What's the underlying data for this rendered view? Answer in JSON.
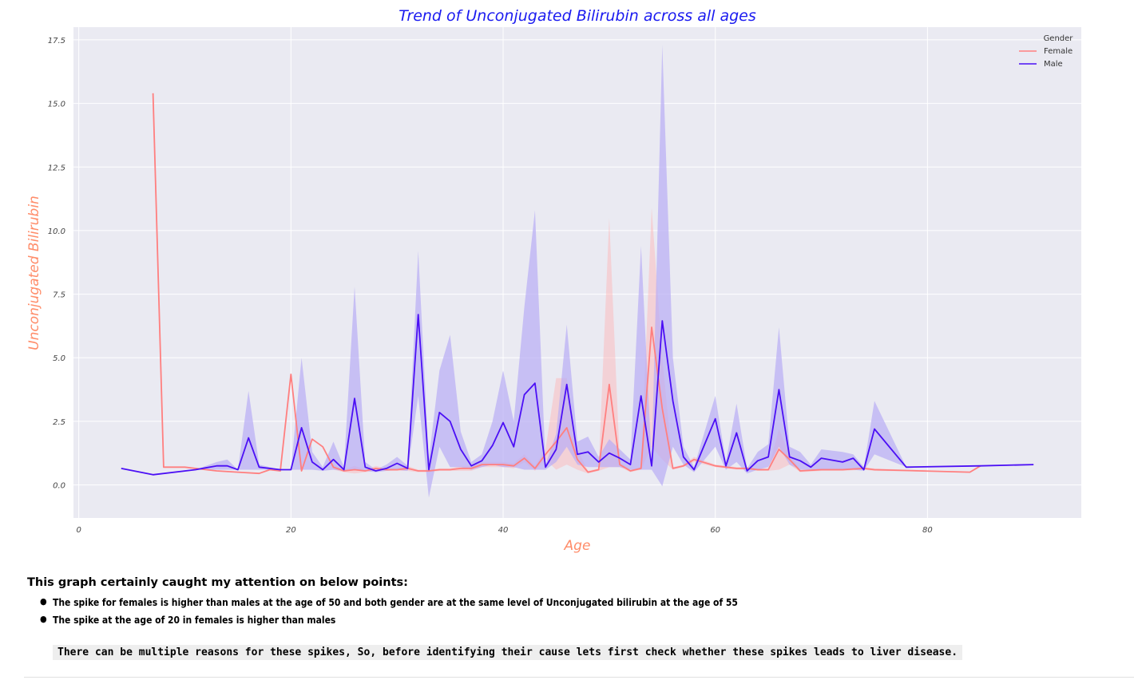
{
  "chart_data": {
    "type": "line",
    "title": "Trend of Unconjugated Bilirubin across all ages",
    "xlabel": "Age",
    "ylabel": "Unconjugated Bilirubin",
    "xlim": [
      -0.5,
      94.5
    ],
    "ylim": [
      -1.3,
      18.0
    ],
    "xticks": [
      0,
      20,
      40,
      60,
      80
    ],
    "yticks": [
      0.0,
      2.5,
      5.0,
      7.5,
      10.0,
      12.5,
      15.0,
      17.5
    ],
    "xtick_labels": [
      "0",
      "20",
      "40",
      "60",
      "80"
    ],
    "ytick_labels": [
      "0.0",
      "2.5",
      "5.0",
      "7.5",
      "10.0",
      "12.5",
      "15.0",
      "17.5"
    ],
    "grid": true,
    "legend": {
      "title": "Gender",
      "placement": "top-right"
    },
    "series": [
      {
        "name": "Female",
        "color": "#ff7f7f",
        "band_color": "#ffb3b3",
        "x": [
          7,
          8,
          10,
          11,
          13,
          15,
          17,
          18,
          19,
          20,
          21,
          22,
          23,
          24,
          25,
          26,
          27,
          28,
          29,
          30,
          31,
          32,
          33,
          34,
          35,
          36,
          37,
          38,
          39,
          40,
          41,
          42,
          43,
          44,
          45,
          46,
          47,
          48,
          49,
          50,
          51,
          52,
          53,
          54,
          55,
          56,
          57,
          58,
          60,
          62,
          63,
          64,
          65,
          66,
          67,
          68,
          70,
          72,
          74,
          75,
          84,
          85
        ],
        "y": [
          15.4,
          0.7,
          0.7,
          0.65,
          0.55,
          0.5,
          0.45,
          0.6,
          0.55,
          4.35,
          0.55,
          1.8,
          1.5,
          0.7,
          0.55,
          0.6,
          0.55,
          0.65,
          0.6,
          0.6,
          0.65,
          0.55,
          0.55,
          0.6,
          0.6,
          0.65,
          0.65,
          0.8,
          0.8,
          0.8,
          0.75,
          1.05,
          0.65,
          1.2,
          1.7,
          2.25,
          1.0,
          0.5,
          0.6,
          3.95,
          0.8,
          0.55,
          0.65,
          6.2,
          3.0,
          0.65,
          0.75,
          1.0,
          0.75,
          0.65,
          0.65,
          0.6,
          0.6,
          1.4,
          1.0,
          0.55,
          0.6,
          0.6,
          0.65,
          0.6,
          0.5,
          0.75
        ],
        "ci_low": [
          15.4,
          0.7,
          0.7,
          0.65,
          0.55,
          0.5,
          0.45,
          0.6,
          0.55,
          4.35,
          0.5,
          1.8,
          1.5,
          0.6,
          0.5,
          0.45,
          0.5,
          0.55,
          0.55,
          0.55,
          0.55,
          0.5,
          0.5,
          0.55,
          0.55,
          0.55,
          0.55,
          0.7,
          0.7,
          0.7,
          0.65,
          0.9,
          0.55,
          1.0,
          0.6,
          0.8,
          0.6,
          0.45,
          0.55,
          0.7,
          0.7,
          0.5,
          0.6,
          1.5,
          1.0,
          0.6,
          0.7,
          0.9,
          0.7,
          0.6,
          0.6,
          0.55,
          0.55,
          0.6,
          0.8,
          0.5,
          0.55,
          0.55,
          0.6,
          0.55,
          0.5,
          0.75
        ],
        "ci_high": [
          15.4,
          0.7,
          0.7,
          0.65,
          0.55,
          0.5,
          0.45,
          0.6,
          0.55,
          4.35,
          0.6,
          1.8,
          1.5,
          0.8,
          0.6,
          0.75,
          0.6,
          0.75,
          0.65,
          0.65,
          0.75,
          0.6,
          0.6,
          0.65,
          0.65,
          0.75,
          0.75,
          0.9,
          0.9,
          0.9,
          0.85,
          1.2,
          0.75,
          1.4,
          4.2,
          4.2,
          1.4,
          0.55,
          0.65,
          10.5,
          0.9,
          0.6,
          0.7,
          10.9,
          5.0,
          0.7,
          0.8,
          1.1,
          0.8,
          0.7,
          0.7,
          0.65,
          0.65,
          2.2,
          1.2,
          0.6,
          0.65,
          0.65,
          0.7,
          0.65,
          0.5,
          0.75
        ]
      },
      {
        "name": "Male",
        "color": "#4b0ff5",
        "band_color": "#b8adf5",
        "x": [
          4,
          7,
          11,
          13,
          14,
          15,
          16,
          17,
          19,
          20,
          21,
          22,
          23,
          24,
          25,
          26,
          27,
          28,
          29,
          30,
          31,
          32,
          33,
          34,
          35,
          36,
          37,
          38,
          39,
          40,
          41,
          42,
          43,
          44,
          45,
          46,
          47,
          48,
          49,
          50,
          51,
          52,
          53,
          54,
          55,
          56,
          57,
          58,
          60,
          61,
          62,
          63,
          64,
          65,
          66,
          67,
          68,
          69,
          70,
          72,
          73,
          74,
          75,
          78,
          85,
          90
        ],
        "y": [
          0.65,
          0.4,
          0.6,
          0.75,
          0.75,
          0.6,
          1.85,
          0.7,
          0.6,
          0.6,
          2.25,
          0.9,
          0.6,
          1.0,
          0.6,
          3.4,
          0.7,
          0.55,
          0.65,
          0.85,
          0.65,
          6.7,
          0.6,
          2.85,
          2.5,
          1.4,
          0.75,
          0.95,
          1.55,
          2.45,
          1.5,
          3.55,
          4.0,
          0.7,
          1.4,
          3.95,
          1.2,
          1.3,
          0.9,
          1.25,
          1.05,
          0.8,
          3.5,
          0.75,
          6.45,
          3.3,
          1.1,
          0.6,
          2.6,
          0.75,
          2.05,
          0.55,
          0.95,
          1.1,
          3.75,
          1.1,
          0.95,
          0.7,
          1.05,
          0.9,
          1.05,
          0.6,
          2.2,
          0.7,
          0.75,
          0.8
        ],
        "ci_low": [
          0.65,
          0.4,
          0.6,
          0.6,
          0.6,
          0.6,
          0.6,
          0.6,
          0.6,
          0.6,
          0.6,
          0.6,
          0.55,
          0.6,
          0.55,
          0.6,
          0.55,
          0.5,
          0.55,
          0.6,
          0.55,
          3.5,
          -0.5,
          1.5,
          0.7,
          0.7,
          0.6,
          0.7,
          0.8,
          0.7,
          0.7,
          0.6,
          0.6,
          0.6,
          0.9,
          1.5,
          0.8,
          0.7,
          0.7,
          0.7,
          0.7,
          0.6,
          0.6,
          0.6,
          -0.05,
          1.5,
          0.8,
          0.5,
          1.5,
          0.6,
          0.9,
          0.45,
          0.6,
          0.7,
          1.5,
          0.8,
          0.6,
          0.6,
          0.6,
          0.6,
          0.6,
          0.55,
          1.2,
          0.7,
          0.75,
          0.8
        ],
        "ci_high": [
          0.65,
          0.4,
          0.6,
          0.9,
          1.0,
          0.6,
          3.7,
          0.8,
          0.6,
          0.6,
          5.0,
          1.3,
          0.7,
          1.7,
          0.7,
          7.8,
          0.9,
          0.6,
          0.8,
          1.1,
          0.75,
          9.2,
          1.0,
          4.5,
          5.9,
          2.1,
          0.9,
          1.2,
          2.5,
          4.5,
          2.5,
          7.0,
          10.8,
          0.8,
          2.0,
          6.3,
          1.7,
          1.9,
          1.1,
          1.8,
          1.4,
          1.0,
          9.4,
          0.9,
          17.3,
          5.0,
          1.5,
          0.7,
          3.5,
          0.9,
          3.2,
          0.65,
          1.3,
          1.6,
          6.2,
          1.5,
          1.3,
          0.8,
          1.4,
          1.3,
          1.2,
          0.7,
          3.3,
          0.7,
          0.75,
          0.8
        ]
      }
    ]
  },
  "notes": {
    "heading": "This graph certainly caught my attention on below points:",
    "points": [
      "The spike for females is higher than males at the age of 50 and both gender are at the same level of Unconjugated bilirubin at the age of 55",
      "The spike at the age of 20 in females is higher than males"
    ],
    "code_note": "There can be multiple reasons for these spikes, So, before identifying their cause lets first check whether these spikes leads to liver disease."
  },
  "colors": {
    "title": "#1a1af0",
    "axis_label": "#ff8c69",
    "plot_bg": "#eaeaf2",
    "grid": "#ffffff"
  }
}
